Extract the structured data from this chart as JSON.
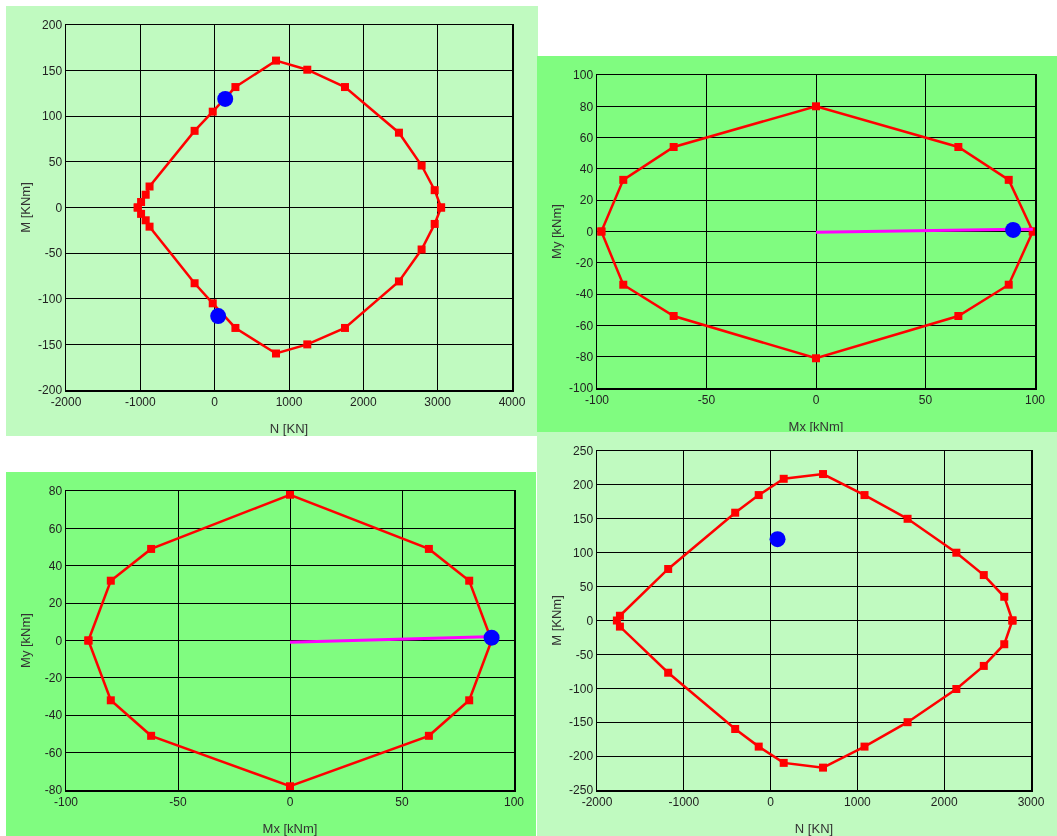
{
  "chart_data": [
    {
      "type": "line",
      "xlabel": "N [KN]",
      "ylabel": "M [KNm]",
      "xlim": [
        -2000,
        4000
      ],
      "ylim": [
        -200,
        200
      ],
      "xticks": [
        -2000,
        -1000,
        0,
        1000,
        2000,
        3000,
        4000
      ],
      "yticks": [
        -200,
        -150,
        -100,
        -50,
        0,
        50,
        100,
        150,
        200
      ],
      "grid": true,
      "marker": "square",
      "line_style": "solid",
      "series": [
        {
          "color": "#ff0000",
          "x": [
            -1035,
            -990,
            -928,
            -876,
            -270,
            -26,
            279,
            825,
            1246,
            1753,
            2479,
            2784,
            2960,
            3046
          ],
          "values": [
            0,
            6,
            14,
            23,
            84,
            105,
            132,
            161,
            151,
            132,
            82,
            46,
            19,
            0
          ]
        },
        {
          "color": "#ff0000",
          "x": [
            -1035,
            -990,
            -928,
            -876,
            -270,
            -26,
            279,
            825,
            1246,
            1753,
            2479,
            2784,
            2960,
            3046
          ],
          "values": [
            0,
            -7,
            -14,
            -21,
            -83,
            -105,
            -132,
            -160,
            -150,
            -132,
            -81,
            -46,
            -18,
            0
          ]
        },
        {
          "type": "scatter",
          "color": "#0000ff",
          "marker": "circle",
          "x": [
            142,
            47
          ],
          "values": [
            119,
            -119
          ]
        }
      ]
    },
    {
      "type": "line",
      "xlabel": "Mx [kNm]",
      "ylabel": "My [kNm]",
      "xlim": [
        -100,
        100
      ],
      "ylim": [
        -100,
        100
      ],
      "xticks": [
        -100,
        -50,
        0,
        50,
        100
      ],
      "yticks": [
        -100,
        -80,
        -60,
        -40,
        -20,
        0,
        20,
        40,
        60,
        80,
        100
      ],
      "grid": true,
      "marker": "square",
      "line_style": "solid",
      "series": [
        {
          "color": "#ff0000",
          "x": [
            -98,
            -88,
            -65,
            0,
            65,
            88,
            99
          ],
          "values": [
            0,
            33,
            54,
            80,
            54,
            33,
            0
          ]
        },
        {
          "color": "#ff0000",
          "x": [
            -98,
            -88,
            -65,
            0,
            65,
            88,
            99
          ],
          "values": [
            0,
            -34,
            -54,
            -81,
            -54,
            -34,
            0
          ]
        },
        {
          "color": "#ff00ff",
          "marker": "none",
          "x": [
            0,
            99
          ],
          "values": [
            -0.5,
            1.5
          ]
        },
        {
          "type": "scatter",
          "color": "#0000ff",
          "marker": "circle",
          "x": [
            90
          ],
          "values": [
            1
          ]
        }
      ]
    },
    {
      "type": "line",
      "xlabel": "Mx [kNm]",
      "ylabel": "My [kNm]",
      "xlim": [
        -100,
        100
      ],
      "ylim": [
        -80,
        80
      ],
      "xticks": [
        -100,
        -50,
        0,
        50,
        100
      ],
      "yticks": [
        -80,
        -60,
        -40,
        -20,
        0,
        20,
        40,
        60,
        80
      ],
      "grid": true,
      "marker": "square",
      "line_style": "solid",
      "series": [
        {
          "color": "#ff0000",
          "x": [
            -90,
            -80,
            -62,
            0,
            62,
            80,
            90
          ],
          "values": [
            0,
            32,
            49,
            78,
            49,
            32,
            0
          ]
        },
        {
          "color": "#ff0000",
          "x": [
            -90,
            -80,
            -62,
            0,
            62,
            80,
            90
          ],
          "values": [
            0,
            -32,
            -51,
            -78,
            -51,
            -32,
            0
          ]
        },
        {
          "color": "#ff00ff",
          "marker": "none",
          "x": [
            0,
            88
          ],
          "values": [
            -1,
            2
          ]
        },
        {
          "type": "scatter",
          "color": "#0000ff",
          "marker": "circle",
          "x": [
            90
          ],
          "values": [
            1.5
          ]
        }
      ]
    },
    {
      "type": "line",
      "xlabel": "N [KN]",
      "ylabel": "M [KNm]",
      "xlim": [
        -2000,
        3000
      ],
      "ylim": [
        -250,
        250
      ],
      "xticks": [
        -2000,
        -1000,
        0,
        1000,
        2000,
        3000
      ],
      "yticks": [
        -250,
        -200,
        -150,
        -100,
        -50,
        0,
        50,
        100,
        150,
        200,
        250
      ],
      "grid": true,
      "marker": "square",
      "line_style": "solid",
      "series": [
        {
          "color": "#ff0000",
          "x": [
            -1736,
            -1180,
            -408,
            -137,
            151,
            604,
            1082,
            1578,
            2140,
            2456,
            2692,
            2786
          ],
          "values": [
            7,
            76,
            159,
            185,
            209,
            216,
            185,
            150,
            100,
            67,
            35,
            0
          ]
        },
        {
          "color": "#ff0000",
          "x": [
            -1771,
            -1736,
            -1180,
            -408,
            -137,
            151,
            604,
            1082,
            1578,
            2140,
            2456,
            2692,
            2786
          ],
          "values": [
            0,
            -9,
            -77,
            -160,
            -186,
            -210,
            -217,
            -186,
            -150,
            -101,
            -67,
            -35,
            0
          ]
        },
        {
          "type": "scatter",
          "color": "#0000ff",
          "marker": "circle",
          "x": [
            80
          ],
          "values": [
            120
          ]
        }
      ]
    }
  ]
}
